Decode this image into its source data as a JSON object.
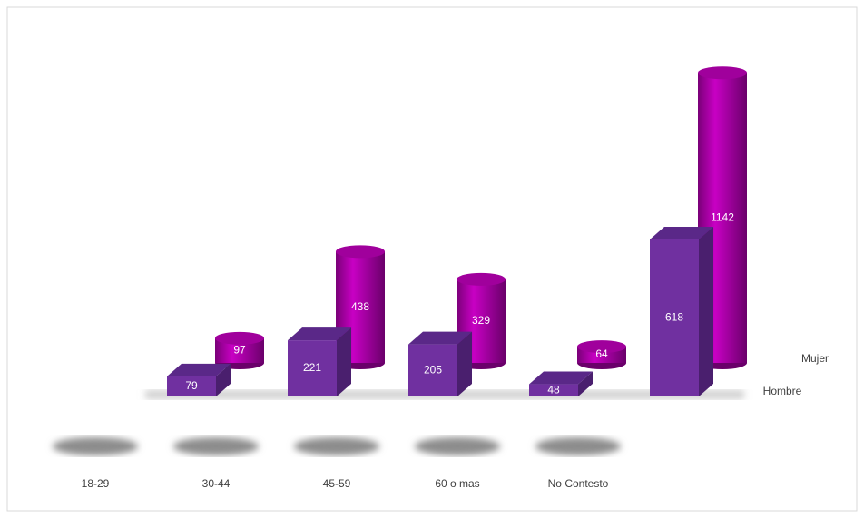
{
  "chart_data": {
    "type": "bar3d",
    "categories": [
      "18-29",
      "30-44",
      "45-59",
      "60 o mas",
      "No Contesto",
      null
    ],
    "series": [
      {
        "name": "Hombre",
        "color": "#7030a0",
        "values": [
          79,
          221,
          205,
          48,
          618,
          null
        ]
      },
      {
        "name": "Mujer",
        "color": "#a0009c",
        "values": [
          97,
          438,
          329,
          64,
          1142,
          null
        ]
      }
    ]
  }
}
